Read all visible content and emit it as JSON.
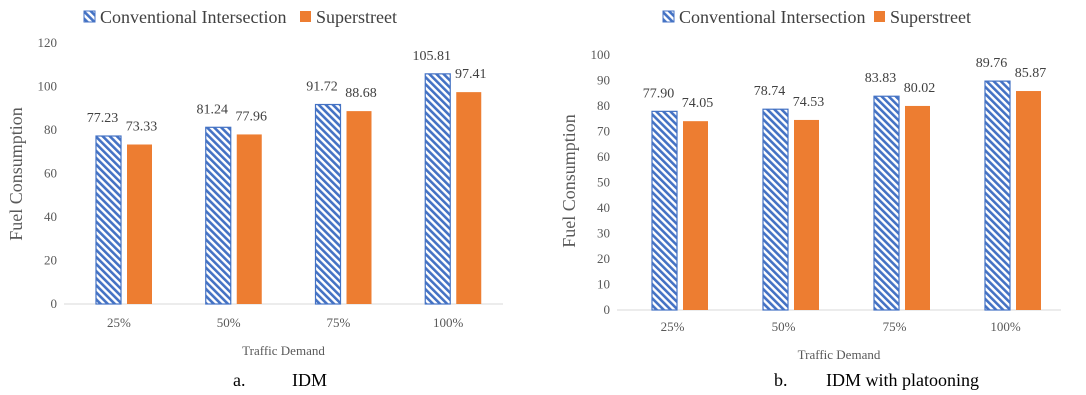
{
  "chart_data": [
    {
      "type": "bar",
      "caption": {
        "letter": "a.",
        "text": "IDM"
      },
      "categories": [
        "25%",
        "50%",
        "75%",
        "100%"
      ],
      "series": [
        {
          "name": "Conventional Intersection",
          "values": [
            77.23,
            81.24,
            91.72,
            105.81
          ],
          "labels": [
            "77.23",
            "81.24",
            "91.72",
            "105.81"
          ]
        },
        {
          "name": "Superstreet",
          "values": [
            73.33,
            77.96,
            88.68,
            97.41
          ],
          "labels": [
            "73.33",
            "77.96",
            "88.68",
            "97.41"
          ]
        }
      ],
      "xlabel": "Traffic Demand",
      "ylabel": "Fuel Consumption",
      "ylim": [
        0,
        120
      ],
      "yticks": [
        "0",
        "20",
        "40",
        "60",
        "80",
        "100",
        "120"
      ],
      "legend": "top"
    },
    {
      "type": "bar",
      "caption": {
        "letter": "b.",
        "text": "IDM with platooning"
      },
      "categories": [
        "25%",
        "50%",
        "75%",
        "100%"
      ],
      "series": [
        {
          "name": "Conventional Intersection",
          "values": [
            77.9,
            78.74,
            83.83,
            89.76
          ],
          "labels": [
            "77.90",
            "78.74",
            "83.83",
            "89.76"
          ]
        },
        {
          "name": "Superstreet",
          "values": [
            74.05,
            74.53,
            80.02,
            85.87
          ],
          "labels": [
            "74.05",
            "74.53",
            "80.02",
            "85.87"
          ]
        }
      ],
      "xlabel": "Traffic Demand",
      "ylabel": "Fuel Consumption",
      "ylim": [
        0,
        100
      ],
      "yticks": [
        "0",
        "10",
        "20",
        "30",
        "40",
        "50",
        "60",
        "70",
        "80",
        "90",
        "100"
      ],
      "legend": "top"
    }
  ],
  "colors": {
    "conventional": "#4472C4",
    "superstreet": "#ED7D31",
    "axis": "#D9D9D9"
  }
}
